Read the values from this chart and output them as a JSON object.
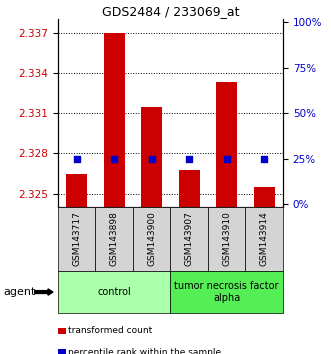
{
  "title": "GDS2484 / 233069_at",
  "samples": [
    "GSM143717",
    "GSM143898",
    "GSM143900",
    "GSM143907",
    "GSM143910",
    "GSM143914"
  ],
  "bar_values": [
    2.3265,
    2.337,
    2.3315,
    2.3268,
    2.3333,
    2.3255
  ],
  "percentile_values": [
    25,
    25,
    25,
    25,
    25,
    25
  ],
  "bar_color": "#cc0000",
  "percentile_color": "#0000cc",
  "ylim_left": [
    2.324,
    2.338
  ],
  "ylim_right": [
    -1.43,
    101.43
  ],
  "yticks_left": [
    2.325,
    2.328,
    2.331,
    2.334,
    2.337
  ],
  "yticks_right": [
    0,
    25,
    50,
    75,
    100
  ],
  "groups": [
    {
      "label": "control",
      "indices": [
        0,
        1,
        2
      ],
      "color": "#ccffcc"
    },
    {
      "label": "tumor necrosis factor\nalpha",
      "indices": [
        3,
        4,
        5
      ],
      "color": "#66ff66"
    }
  ],
  "agent_label": "agent",
  "legend_items": [
    {
      "label": "transformed count",
      "color": "#cc0000"
    },
    {
      "label": "percentile rank within the sample",
      "color": "#0000cc"
    }
  ],
  "bar_bottom": 2.324,
  "bar_width": 0.55,
  "tick_label_color_left": "#cc0000",
  "tick_label_color_right": "#0000cc",
  "sample_box_color": "#d0d0d0",
  "group_colors": [
    "#aaffaa",
    "#55ee55"
  ]
}
